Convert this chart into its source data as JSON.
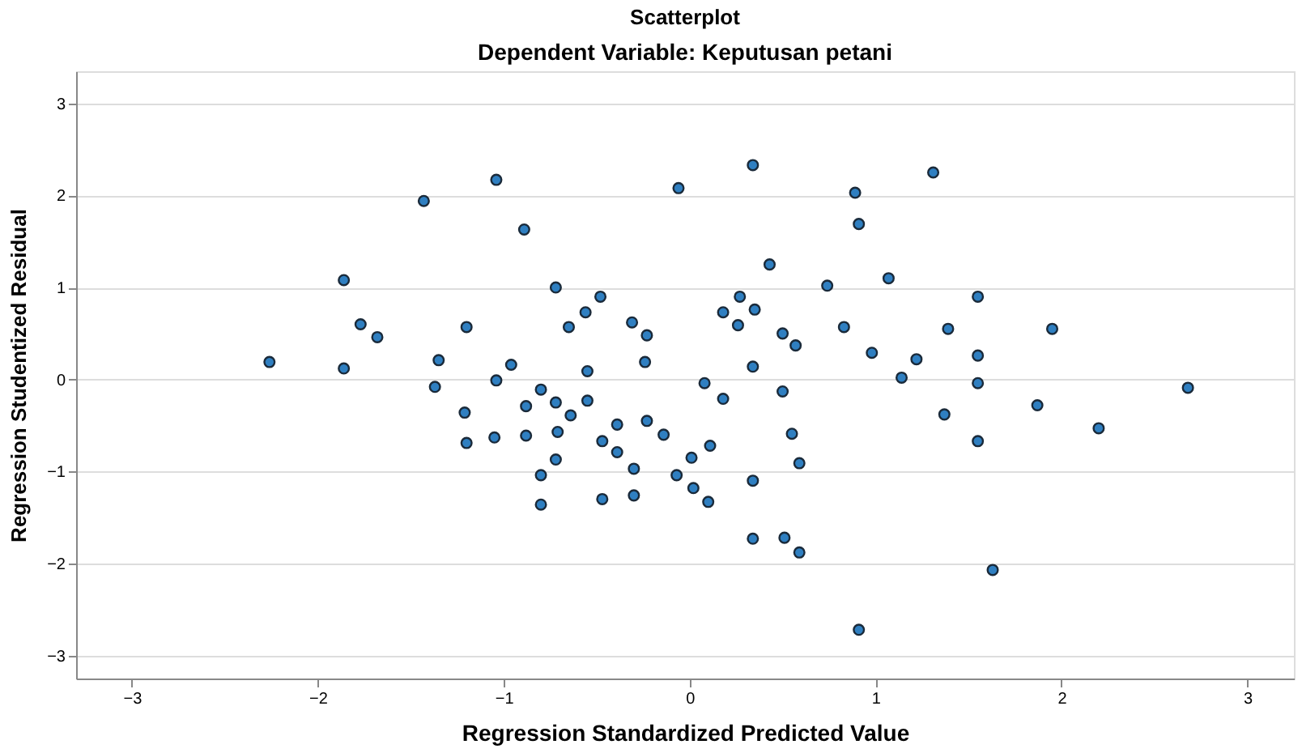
{
  "chart_data": {
    "type": "scatter",
    "title": "Scatterplot",
    "subtitle": "Dependent Variable: Keputusan petani",
    "xlabel": "Regression Standardized Predicted Value",
    "ylabel": "Regression Studentized Residual",
    "xlim": [
      -3.3,
      3.25
    ],
    "ylim": [
      -3.25,
      3.35
    ],
    "xticks": [
      -3,
      -2,
      -1,
      0,
      1,
      2,
      3
    ],
    "yticks": [
      -3,
      -2,
      -1,
      0,
      1,
      2,
      3
    ],
    "grid": "y",
    "legend": false,
    "marker": "circle",
    "series": [
      {
        "color": "#2f7fc1",
        "x": [
          -2.26,
          -1.86,
          -1.86,
          -1.77,
          -1.68,
          -1.43,
          -1.35,
          -1.37,
          -1.2,
          -1.21,
          -1.2,
          -1.04,
          -1.04,
          -1.05,
          -0.96,
          -0.89,
          -0.88,
          -0.88,
          -0.8,
          -0.8,
          -0.8,
          -0.72,
          -0.72,
          -0.71,
          -0.72,
          -0.64,
          -0.65,
          -0.56,
          -0.48,
          -0.55,
          -0.55,
          -0.47,
          -0.47,
          -0.39,
          -0.39,
          -0.31,
          -0.23,
          -0.24,
          -0.3,
          -0.3,
          -0.23,
          -0.14,
          -0.06,
          -0.07,
          0.01,
          0.02,
          0.11,
          0.1,
          0.08,
          0.18,
          0.18,
          0.27,
          0.26,
          0.35,
          0.34,
          0.34,
          0.34,
          0.34,
          0.43,
          0.5,
          0.57,
          0.5,
          0.55,
          0.59,
          0.51,
          0.59,
          0.74,
          0.83,
          0.89,
          0.91,
          0.91,
          0.98,
          1.07,
          1.14,
          1.22,
          1.31,
          1.55,
          1.39,
          1.95,
          1.55,
          1.55,
          1.37,
          1.87,
          2.2,
          2.68,
          1.55,
          1.63
        ],
        "values": [
          0.19,
          1.08,
          0.12,
          0.6,
          0.46,
          1.94,
          0.21,
          -0.08,
          0.57,
          -0.36,
          -0.69,
          2.17,
          -0.01,
          -0.63,
          0.16,
          1.63,
          -0.29,
          -0.61,
          -0.11,
          -1.04,
          -1.36,
          1.0,
          -0.25,
          -0.57,
          -0.87,
          -0.39,
          0.57,
          0.73,
          0.9,
          0.09,
          -0.23,
          -0.67,
          -1.3,
          -0.49,
          -0.79,
          0.62,
          0.48,
          0.19,
          -0.97,
          -1.26,
          -0.45,
          -0.6,
          2.08,
          -1.04,
          -0.85,
          -1.18,
          -0.72,
          -1.33,
          -0.04,
          -0.21,
          0.73,
          0.9,
          0.59,
          0.76,
          2.33,
          0.14,
          -1.1,
          -1.73,
          1.25,
          0.5,
          0.37,
          -0.13,
          -0.59,
          -0.91,
          -1.72,
          -1.88,
          1.02,
          0.57,
          2.03,
          1.69,
          -2.72,
          0.29,
          1.1,
          0.02,
          0.22,
          2.25,
          0.9,
          0.55,
          0.55,
          0.26,
          -0.04,
          -0.38,
          -0.28,
          -0.53,
          -0.09,
          -0.67,
          -2.07
        ]
      }
    ]
  }
}
